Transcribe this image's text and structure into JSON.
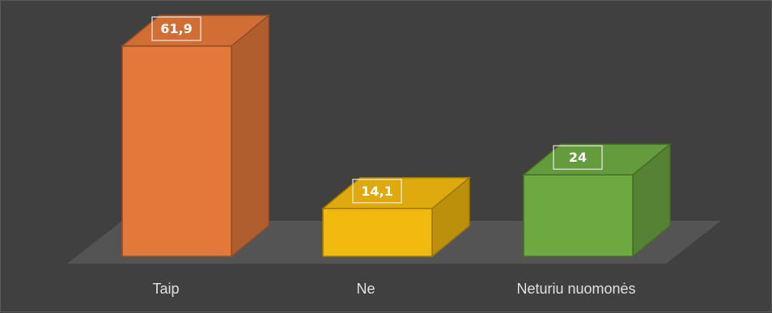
{
  "chart_data": {
    "type": "bar",
    "style": "3d-column",
    "categories": [
      "Taip",
      "Ne",
      "Neturiu nuomonės"
    ],
    "values": [
      61.9,
      14.1,
      24
    ],
    "value_labels": [
      "61,9",
      "14,1",
      "24"
    ],
    "colors": [
      "#e2783a",
      "#f2b90f",
      "#6da841"
    ],
    "ylim": [
      0,
      61.9
    ],
    "grid": false,
    "legend": "none"
  }
}
